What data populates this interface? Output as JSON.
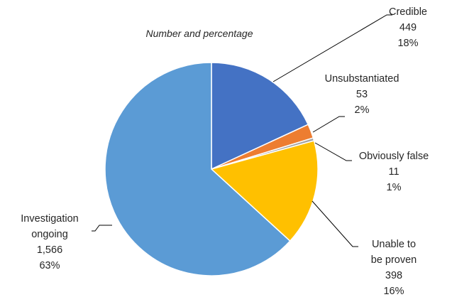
{
  "chart_data": {
    "type": "pie",
    "subtitle": "Number and percentage",
    "start_angle_deg": 0,
    "direction": "clockwise",
    "legend": "none",
    "slices": [
      {
        "label": "Credible",
        "value": 449,
        "value_label": "449",
        "percent_label": "18%",
        "color": "#4472C4"
      },
      {
        "label": "Unsubstantiated",
        "value": 53,
        "value_label": "53",
        "percent_label": "2%",
        "color": "#ED7D31"
      },
      {
        "label": "Obviously false",
        "value": 11,
        "value_label": "11",
        "percent_label": "1%",
        "color": "#A5A5A5"
      },
      {
        "label": "Unable to be proven",
        "value": 398,
        "value_label": "398",
        "percent_label": "16%",
        "color": "#FFC000"
      },
      {
        "label": "Investigation ongoing",
        "value": 1566,
        "value_label": "1,566",
        "percent_label": "63%",
        "color": "#5B9BD5"
      }
    ]
  }
}
